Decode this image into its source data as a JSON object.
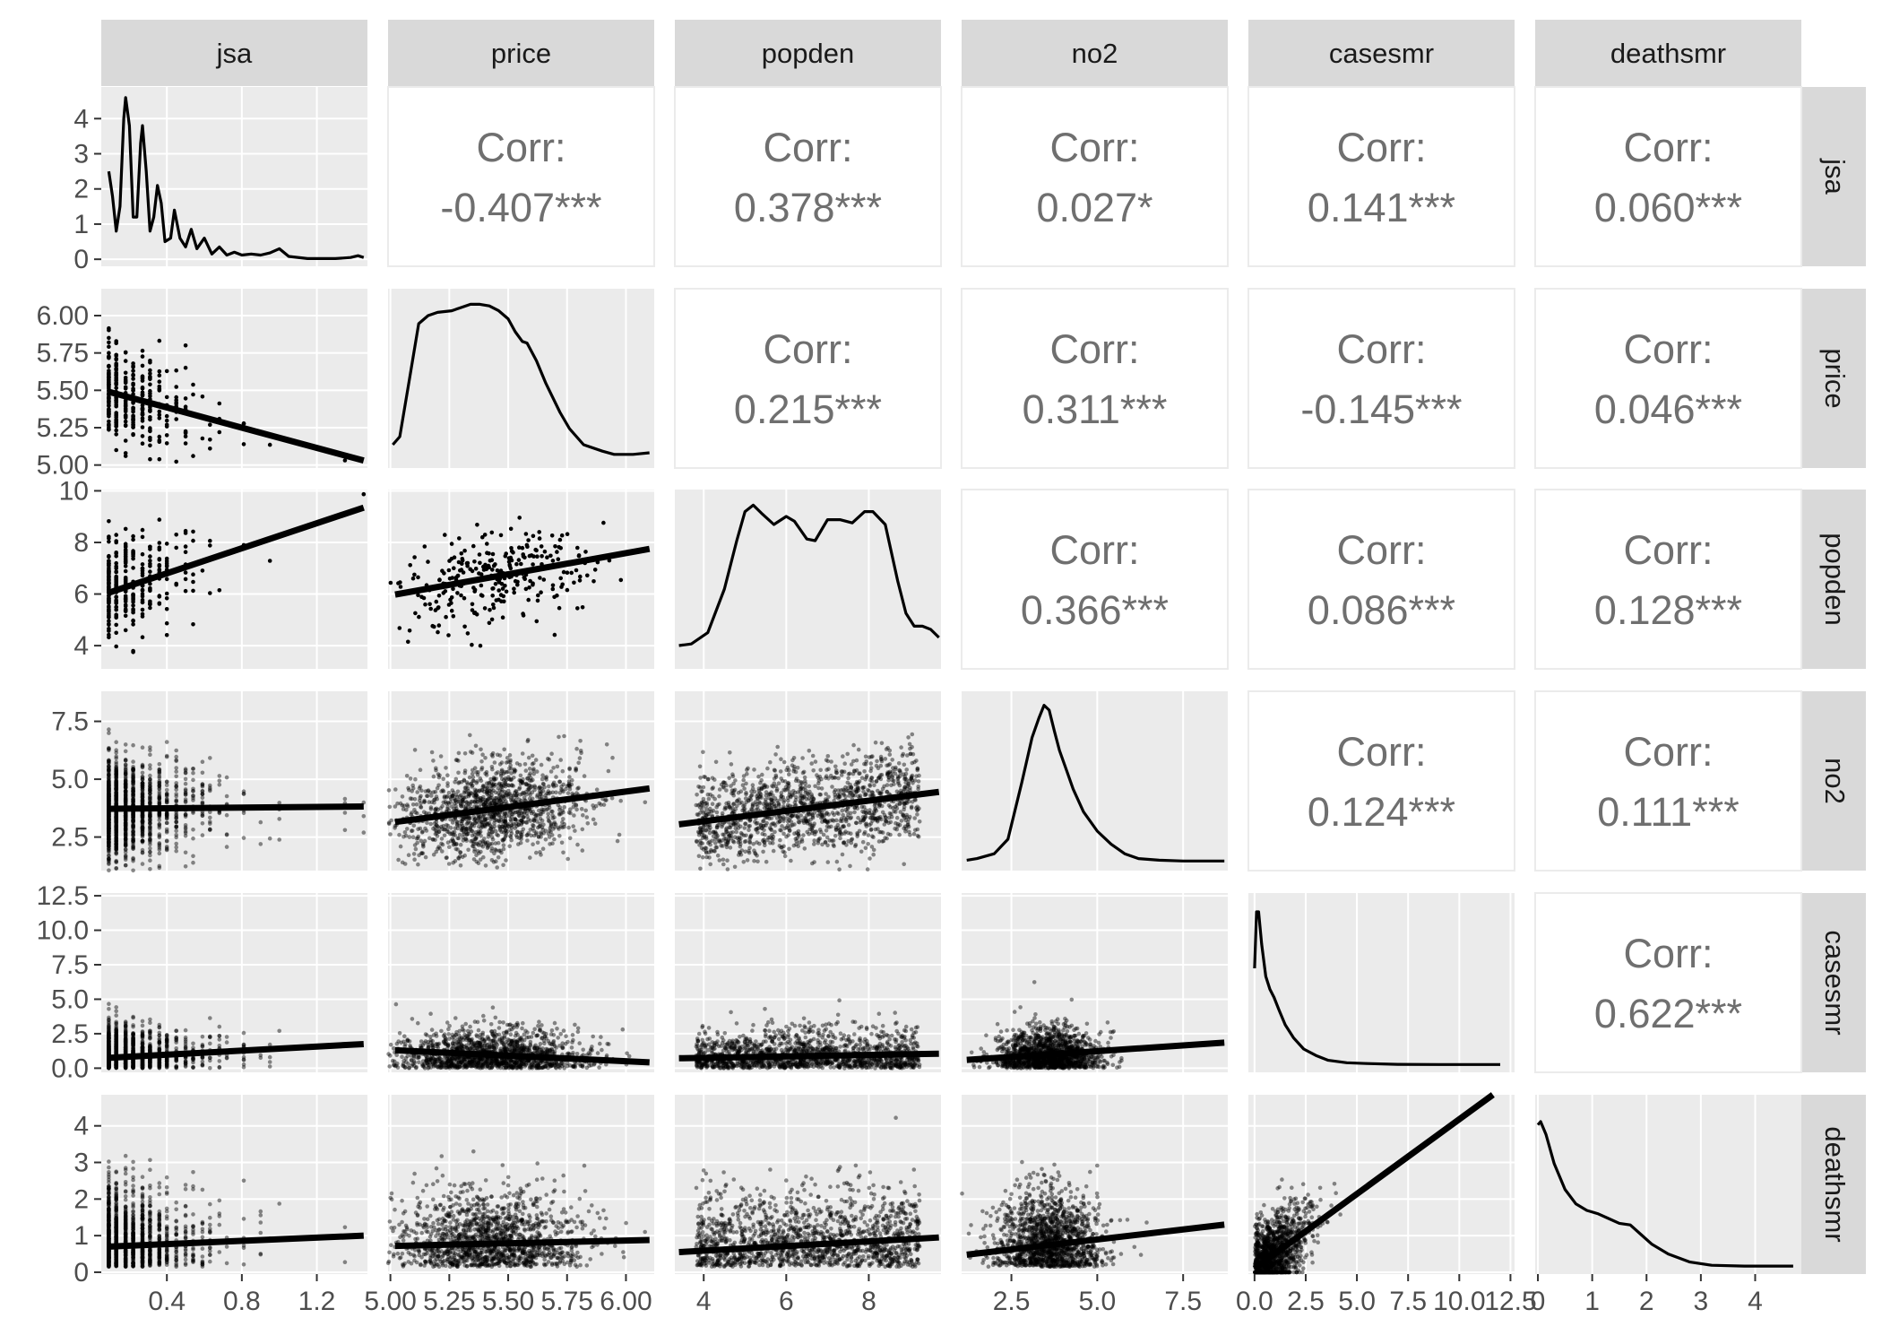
{
  "chart_data": {
    "type": "scatter-matrix",
    "title": "",
    "variables": [
      "jsa",
      "price",
      "popden",
      "no2",
      "casesmr",
      "deathsmr"
    ],
    "axes": {
      "jsa": {
        "range": [
          0.05,
          1.47
        ],
        "ticks": [
          0.4,
          0.8,
          1.2
        ],
        "tick_labels": [
          "0.4",
          "0.8",
          "1.2"
        ]
      },
      "price": {
        "range": [
          4.99,
          6.12
        ],
        "ticks": [
          5.0,
          5.25,
          5.5,
          5.75,
          6.0
        ],
        "tick_labels": [
          "5.00",
          "5.25",
          "5.50",
          "5.75",
          "6.00"
        ]
      },
      "popden": {
        "range": [
          3.3,
          9.75
        ],
        "ticks": [
          4,
          6,
          8,
          10
        ],
        "tick_labels": [
          "4",
          "6",
          "8",
          "10"
        ]
      },
      "no2": {
        "range": [
          1.05,
          8.8
        ],
        "ticks": [
          2.5,
          5.0,
          7.5
        ],
        "tick_labels": [
          "2.5",
          "5.0",
          "7.5"
        ]
      },
      "casesmr": {
        "range": [
          -0.3,
          12.7
        ],
        "ticks": [
          0,
          2.5,
          5,
          7.5,
          10,
          12.5
        ],
        "tick_labels": [
          "0.0",
          "2.5",
          "5.0",
          "7.5",
          "10.0",
          "12.5"
        ]
      },
      "deathsmr": {
        "range": [
          -0.05,
          4.85
        ],
        "ticks": [
          0,
          1,
          2,
          3,
          4
        ],
        "tick_labels": [
          "0",
          "1",
          "2",
          "3",
          "4"
        ]
      }
    },
    "y_axes": {
      "jsa": {
        "range": [
          -0.2,
          4.9
        ],
        "ticks": [
          0,
          1,
          2,
          3,
          4
        ],
        "tick_labels": [
          "0",
          "1",
          "2",
          "3",
          "4"
        ]
      },
      "price": {
        "range": [
          4.98,
          6.18
        ],
        "ticks": [
          5.0,
          5.25,
          5.5,
          5.75,
          6.0
        ],
        "tick_labels": [
          "5.00",
          "5.25",
          "5.50",
          "5.75",
          "6.00"
        ]
      },
      "popden": {
        "range": [
          3.1,
          10.05
        ],
        "ticks": [
          4,
          6,
          8,
          10
        ],
        "tick_labels": [
          "4",
          "6",
          "8",
          "10"
        ]
      },
      "no2": {
        "range": [
          1.05,
          8.8
        ],
        "ticks": [
          2.5,
          5.0,
          7.5
        ],
        "tick_labels": [
          "2.5",
          "5.0",
          "7.5"
        ]
      },
      "casesmr": {
        "range": [
          -0.3,
          12.7
        ],
        "ticks": [
          0,
          2.5,
          5,
          7.5,
          10,
          12.5
        ],
        "tick_labels": [
          "0.0",
          "2.5",
          "5.0",
          "7.5",
          "10.0",
          "12.5"
        ]
      },
      "deathsmr": {
        "range": [
          -0.05,
          4.85
        ],
        "ticks": [
          0,
          1,
          2,
          3,
          4
        ],
        "tick_labels": [
          "0",
          "1",
          "2",
          "3",
          "4"
        ]
      }
    },
    "correlations": [
      {
        "row": "jsa",
        "col": "price",
        "label": "Corr:",
        "value": "-0.407***"
      },
      {
        "row": "jsa",
        "col": "popden",
        "label": "Corr:",
        "value": "0.378***"
      },
      {
        "row": "jsa",
        "col": "no2",
        "label": "Corr:",
        "value": "0.027*"
      },
      {
        "row": "jsa",
        "col": "casesmr",
        "label": "Corr:",
        "value": "0.141***"
      },
      {
        "row": "jsa",
        "col": "deathsmr",
        "label": "Corr:",
        "value": "0.060***"
      },
      {
        "row": "price",
        "col": "popden",
        "label": "Corr:",
        "value": "0.215***"
      },
      {
        "row": "price",
        "col": "no2",
        "label": "Corr:",
        "value": "0.311***"
      },
      {
        "row": "price",
        "col": "casesmr",
        "label": "Corr:",
        "value": "-0.145***"
      },
      {
        "row": "price",
        "col": "deathsmr",
        "label": "Corr:",
        "value": "0.046***"
      },
      {
        "row": "popden",
        "col": "no2",
        "label": "Corr:",
        "value": "0.366***"
      },
      {
        "row": "popden",
        "col": "casesmr",
        "label": "Corr:",
        "value": "0.086***"
      },
      {
        "row": "popden",
        "col": "deathsmr",
        "label": "Corr:",
        "value": "0.128***"
      },
      {
        "row": "no2",
        "col": "casesmr",
        "label": "Corr:",
        "value": "0.124***"
      },
      {
        "row": "no2",
        "col": "deathsmr",
        "label": "Corr:",
        "value": "0.111***"
      },
      {
        "row": "casesmr",
        "col": "deathsmr",
        "label": "Corr:",
        "value": "0.622***"
      }
    ],
    "density_curves": {
      "jsa": [
        [
          0.09,
          2.5
        ],
        [
          0.11,
          1.8
        ],
        [
          0.13,
          0.8
        ],
        [
          0.15,
          1.5
        ],
        [
          0.17,
          4.0
        ],
        [
          0.18,
          4.6
        ],
        [
          0.2,
          3.8
        ],
        [
          0.22,
          1.2
        ],
        [
          0.24,
          1.2
        ],
        [
          0.26,
          3.3
        ],
        [
          0.27,
          3.8
        ],
        [
          0.29,
          2.5
        ],
        [
          0.31,
          0.8
        ],
        [
          0.33,
          1.2
        ],
        [
          0.35,
          2.1
        ],
        [
          0.37,
          1.6
        ],
        [
          0.39,
          0.5
        ],
        [
          0.42,
          0.6
        ],
        [
          0.44,
          1.4
        ],
        [
          0.47,
          0.6
        ],
        [
          0.5,
          0.35
        ],
        [
          0.53,
          0.85
        ],
        [
          0.56,
          0.3
        ],
        [
          0.6,
          0.6
        ],
        [
          0.64,
          0.15
        ],
        [
          0.68,
          0.35
        ],
        [
          0.72,
          0.12
        ],
        [
          0.76,
          0.2
        ],
        [
          0.8,
          0.12
        ],
        [
          0.85,
          0.15
        ],
        [
          0.9,
          0.12
        ],
        [
          0.95,
          0.18
        ],
        [
          1.0,
          0.3
        ],
        [
          1.05,
          0.08
        ],
        [
          1.15,
          0.02
        ],
        [
          1.3,
          0.02
        ],
        [
          1.38,
          0.05
        ],
        [
          1.42,
          0.1
        ],
        [
          1.45,
          0.05
        ]
      ],
      "price": [
        [
          5.01,
          0.1
        ],
        [
          5.04,
          0.15
        ],
        [
          5.08,
          0.5
        ],
        [
          5.12,
          0.85
        ],
        [
          5.16,
          0.9
        ],
        [
          5.2,
          0.92
        ],
        [
          5.26,
          0.93
        ],
        [
          5.3,
          0.95
        ],
        [
          5.34,
          0.97
        ],
        [
          5.38,
          0.97
        ],
        [
          5.42,
          0.96
        ],
        [
          5.46,
          0.93
        ],
        [
          5.5,
          0.88
        ],
        [
          5.53,
          0.8
        ],
        [
          5.56,
          0.74
        ],
        [
          5.58,
          0.73
        ],
        [
          5.62,
          0.62
        ],
        [
          5.66,
          0.48
        ],
        [
          5.72,
          0.3
        ],
        [
          5.76,
          0.2
        ],
        [
          5.82,
          0.1
        ],
        [
          5.9,
          0.06
        ],
        [
          5.95,
          0.04
        ],
        [
          6.03,
          0.04
        ],
        [
          6.1,
          0.05
        ]
      ],
      "popden": [
        [
          3.4,
          0.1
        ],
        [
          3.7,
          0.11
        ],
        [
          4.1,
          0.18
        ],
        [
          4.5,
          0.45
        ],
        [
          4.8,
          0.75
        ],
        [
          5.0,
          0.93
        ],
        [
          5.2,
          0.97
        ],
        [
          5.4,
          0.92
        ],
        [
          5.7,
          0.85
        ],
        [
          6.0,
          0.9
        ],
        [
          6.2,
          0.87
        ],
        [
          6.5,
          0.76
        ],
        [
          6.7,
          0.75
        ],
        [
          7.0,
          0.88
        ],
        [
          7.3,
          0.88
        ],
        [
          7.6,
          0.86
        ],
        [
          7.9,
          0.93
        ],
        [
          8.1,
          0.93
        ],
        [
          8.4,
          0.85
        ],
        [
          8.7,
          0.5
        ],
        [
          8.9,
          0.3
        ],
        [
          9.1,
          0.22
        ],
        [
          9.3,
          0.22
        ],
        [
          9.5,
          0.2
        ],
        [
          9.7,
          0.15
        ]
      ],
      "no2": [
        [
          1.2,
          0.02
        ],
        [
          1.5,
          0.03
        ],
        [
          2.0,
          0.06
        ],
        [
          2.4,
          0.15
        ],
        [
          2.8,
          0.5
        ],
        [
          3.1,
          0.78
        ],
        [
          3.3,
          0.9
        ],
        [
          3.45,
          0.98
        ],
        [
          3.6,
          0.95
        ],
        [
          3.75,
          0.82
        ],
        [
          3.9,
          0.7
        ],
        [
          4.1,
          0.58
        ],
        [
          4.3,
          0.46
        ],
        [
          4.6,
          0.32
        ],
        [
          5.0,
          0.2
        ],
        [
          5.4,
          0.12
        ],
        [
          5.8,
          0.06
        ],
        [
          6.2,
          0.03
        ],
        [
          6.8,
          0.02
        ],
        [
          7.5,
          0.015
        ],
        [
          8.7,
          0.015
        ]
      ],
      "casesmr": [
        [
          0.0,
          0.6
        ],
        [
          0.1,
          0.95
        ],
        [
          0.2,
          0.95
        ],
        [
          0.35,
          0.75
        ],
        [
          0.55,
          0.55
        ],
        [
          0.75,
          0.47
        ],
        [
          0.95,
          0.42
        ],
        [
          1.2,
          0.34
        ],
        [
          1.5,
          0.25
        ],
        [
          1.9,
          0.17
        ],
        [
          2.4,
          0.1
        ],
        [
          3.0,
          0.06
        ],
        [
          3.6,
          0.03
        ],
        [
          4.5,
          0.015
        ],
        [
          5.5,
          0.01
        ],
        [
          7.0,
          0.005
        ],
        [
          9.0,
          0.004
        ],
        [
          12.0,
          0.004
        ]
      ],
      "deathsmr": [
        [
          0.0,
          0.88
        ],
        [
          0.05,
          0.9
        ],
        [
          0.15,
          0.82
        ],
        [
          0.3,
          0.64
        ],
        [
          0.5,
          0.48
        ],
        [
          0.7,
          0.39
        ],
        [
          0.9,
          0.35
        ],
        [
          1.1,
          0.33
        ],
        [
          1.3,
          0.3
        ],
        [
          1.5,
          0.27
        ],
        [
          1.7,
          0.26
        ],
        [
          1.9,
          0.2
        ],
        [
          2.1,
          0.14
        ],
        [
          2.4,
          0.08
        ],
        [
          2.8,
          0.03
        ],
        [
          3.2,
          0.01
        ],
        [
          3.8,
          0.005
        ],
        [
          4.7,
          0.005
        ]
      ]
    },
    "fit_lines": [
      {
        "row": "price",
        "col": "jsa",
        "x": [
          0.09,
          1.45
        ],
        "y": [
          5.49,
          5.03
        ]
      },
      {
        "row": "popden",
        "col": "jsa",
        "x": [
          0.09,
          1.45
        ],
        "y": [
          6.05,
          9.35
        ]
      },
      {
        "row": "popden",
        "col": "price",
        "x": [
          5.02,
          6.1
        ],
        "y": [
          5.98,
          7.75
        ]
      },
      {
        "row": "no2",
        "col": "jsa",
        "x": [
          0.09,
          1.45
        ],
        "y": [
          3.72,
          3.82
        ]
      },
      {
        "row": "no2",
        "col": "price",
        "x": [
          5.02,
          6.1
        ],
        "y": [
          3.15,
          4.6
        ]
      },
      {
        "row": "no2",
        "col": "popden",
        "x": [
          3.4,
          9.7
        ],
        "y": [
          3.05,
          4.45
        ]
      },
      {
        "row": "casesmr",
        "col": "jsa",
        "x": [
          0.09,
          1.45
        ],
        "y": [
          0.75,
          1.75
        ]
      },
      {
        "row": "casesmr",
        "col": "price",
        "x": [
          5.02,
          6.1
        ],
        "y": [
          1.3,
          0.42
        ]
      },
      {
        "row": "casesmr",
        "col": "popden",
        "x": [
          3.4,
          9.7
        ],
        "y": [
          0.72,
          1.05
        ]
      },
      {
        "row": "casesmr",
        "col": "no2",
        "x": [
          1.2,
          8.7
        ],
        "y": [
          0.6,
          1.85
        ]
      },
      {
        "row": "deathsmr",
        "col": "jsa",
        "x": [
          0.09,
          1.45
        ],
        "y": [
          0.7,
          1.0
        ]
      },
      {
        "row": "deathsmr",
        "col": "price",
        "x": [
          5.02,
          6.1
        ],
        "y": [
          0.72,
          0.88
        ]
      },
      {
        "row": "deathsmr",
        "col": "popden",
        "x": [
          3.4,
          9.7
        ],
        "y": [
          0.55,
          0.95
        ]
      },
      {
        "row": "deathsmr",
        "col": "no2",
        "x": [
          1.2,
          8.7
        ],
        "y": [
          0.48,
          1.3
        ]
      },
      {
        "row": "deathsmr",
        "col": "casesmr",
        "x": [
          0.0,
          12.5
        ],
        "y": [
          0.1,
          5.2
        ]
      }
    ],
    "grid": true,
    "colors": {
      "panel_bg": "#ebebeb",
      "strip_bg": "#d9d9d9",
      "grid": "#ffffff",
      "points": "#000000",
      "corr_text": "#6f6f6f"
    }
  }
}
